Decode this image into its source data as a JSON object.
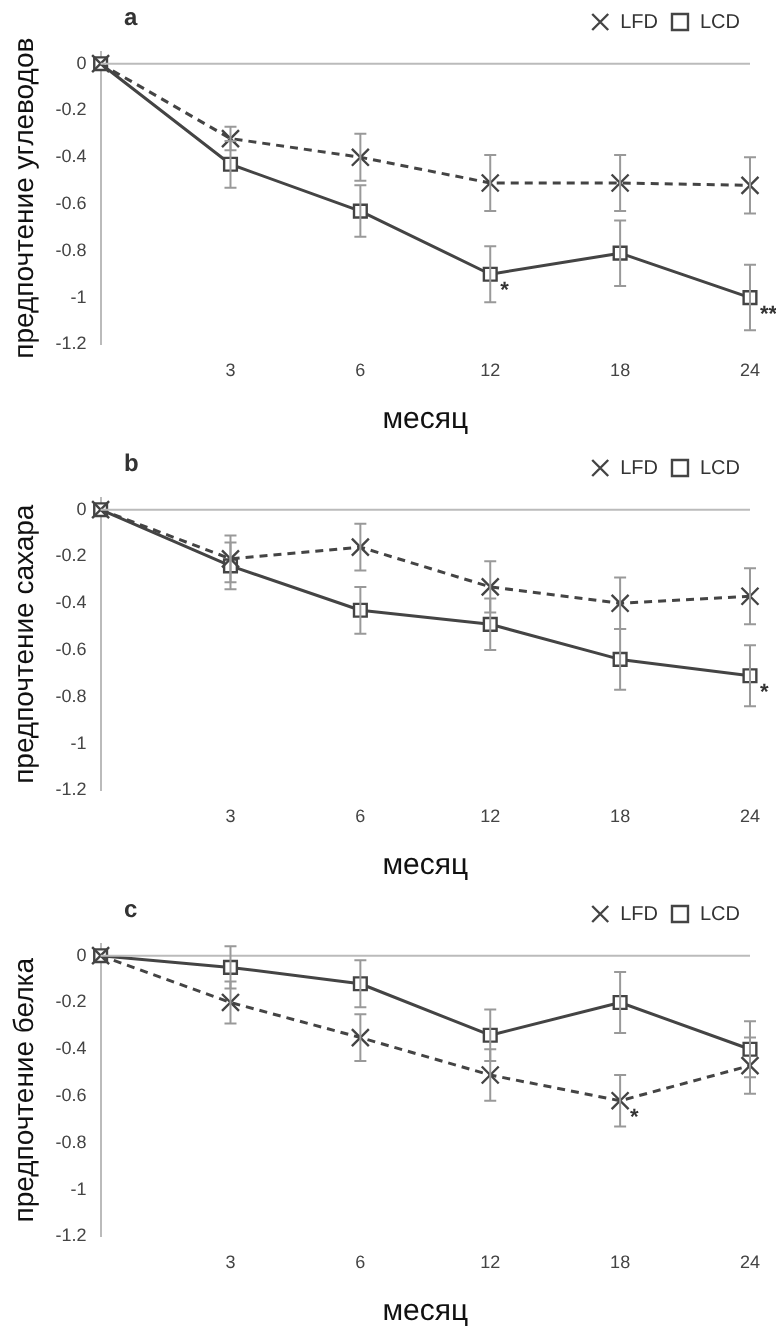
{
  "chart_data": [
    {
      "type": "line",
      "title": "a",
      "xlabel": "месяц",
      "ylabel": "предпочтение углеводов",
      "categories": [
        null,
        "3",
        "6",
        "12",
        "18",
        "24"
      ],
      "ylim": [
        -1.2,
        0.05
      ],
      "yticks": [
        0,
        -0.2,
        -0.4,
        -0.6,
        -0.8,
        -1,
        -1.2
      ],
      "legend": "top right",
      "ref_lines": [
        {
          "axis": "y",
          "value": 0
        }
      ],
      "series": [
        {
          "name": "LCD",
          "color": "#444444",
          "marker": "square",
          "line_style": "solid",
          "values": [
            0,
            -0.43,
            -0.63,
            -0.9,
            -0.81,
            -1.0
          ],
          "errors": [
            null,
            0.1,
            0.11,
            0.12,
            0.14,
            0.14
          ]
        },
        {
          "name": "LFD",
          "color": "#444444",
          "marker": "cross",
          "line_style": "dashed",
          "values": [
            0,
            -0.32,
            -0.4,
            -0.51,
            -0.51,
            -0.52
          ],
          "errors": [
            null,
            0.05,
            0.1,
            0.12,
            0.12,
            0.12
          ]
        }
      ],
      "annotations": [
        {
          "text": "*",
          "x": "12",
          "y": -0.9
        },
        {
          "text": "**",
          "x": "24",
          "y": -1.0
        }
      ]
    },
    {
      "type": "line",
      "title": "b",
      "xlabel": "месяц",
      "ylabel": "предпочтение сахара",
      "categories": [
        null,
        "3",
        "6",
        "12",
        "18",
        "24"
      ],
      "ylim": [
        -1.2,
        0.05
      ],
      "yticks": [
        0,
        -0.2,
        -0.4,
        -0.6,
        -0.8,
        -1,
        -1.2
      ],
      "legend": "top right",
      "ref_lines": [
        {
          "axis": "y",
          "value": 0
        }
      ],
      "series": [
        {
          "name": "LCD",
          "color": "#444444",
          "marker": "square",
          "line_style": "solid",
          "values": [
            0,
            -0.24,
            -0.43,
            -0.49,
            -0.64,
            -0.71
          ],
          "errors": [
            null,
            0.1,
            0.1,
            0.11,
            0.13,
            0.13
          ]
        },
        {
          "name": "LFD",
          "color": "#444444",
          "marker": "cross",
          "line_style": "dashed",
          "values": [
            0,
            -0.21,
            -0.16,
            -0.33,
            -0.4,
            -0.37
          ],
          "errors": [
            null,
            0.1,
            0.1,
            0.11,
            0.11,
            0.12
          ]
        }
      ],
      "annotations": [
        {
          "text": "*",
          "x": "24",
          "y": -0.71
        }
      ]
    },
    {
      "type": "line",
      "title": "c",
      "xlabel": "месяц",
      "ylabel": "предпочтение белка",
      "categories": [
        null,
        "3",
        "6",
        "12",
        "18",
        "24"
      ],
      "ylim": [
        -1.2,
        0.05
      ],
      "yticks": [
        0,
        -0.2,
        -0.4,
        -0.6,
        -0.8,
        -1,
        -1.2
      ],
      "legend": "top right",
      "ref_lines": [
        {
          "axis": "y",
          "value": 0
        }
      ],
      "series": [
        {
          "name": "LCD",
          "color": "#444444",
          "marker": "square",
          "line_style": "solid",
          "values": [
            0,
            -0.05,
            -0.12,
            -0.34,
            -0.2,
            -0.4
          ],
          "errors": [
            null,
            0.09,
            0.1,
            0.11,
            0.13,
            0.12
          ]
        },
        {
          "name": "LFD",
          "color": "#444444",
          "marker": "cross",
          "line_style": "dashed",
          "values": [
            0,
            -0.2,
            -0.35,
            -0.51,
            -0.62,
            -0.47
          ],
          "errors": [
            null,
            0.09,
            0.1,
            0.11,
            0.11,
            0.12
          ]
        }
      ],
      "annotations": [
        {
          "text": "*",
          "x": "18",
          "y": -0.62
        }
      ]
    }
  ]
}
